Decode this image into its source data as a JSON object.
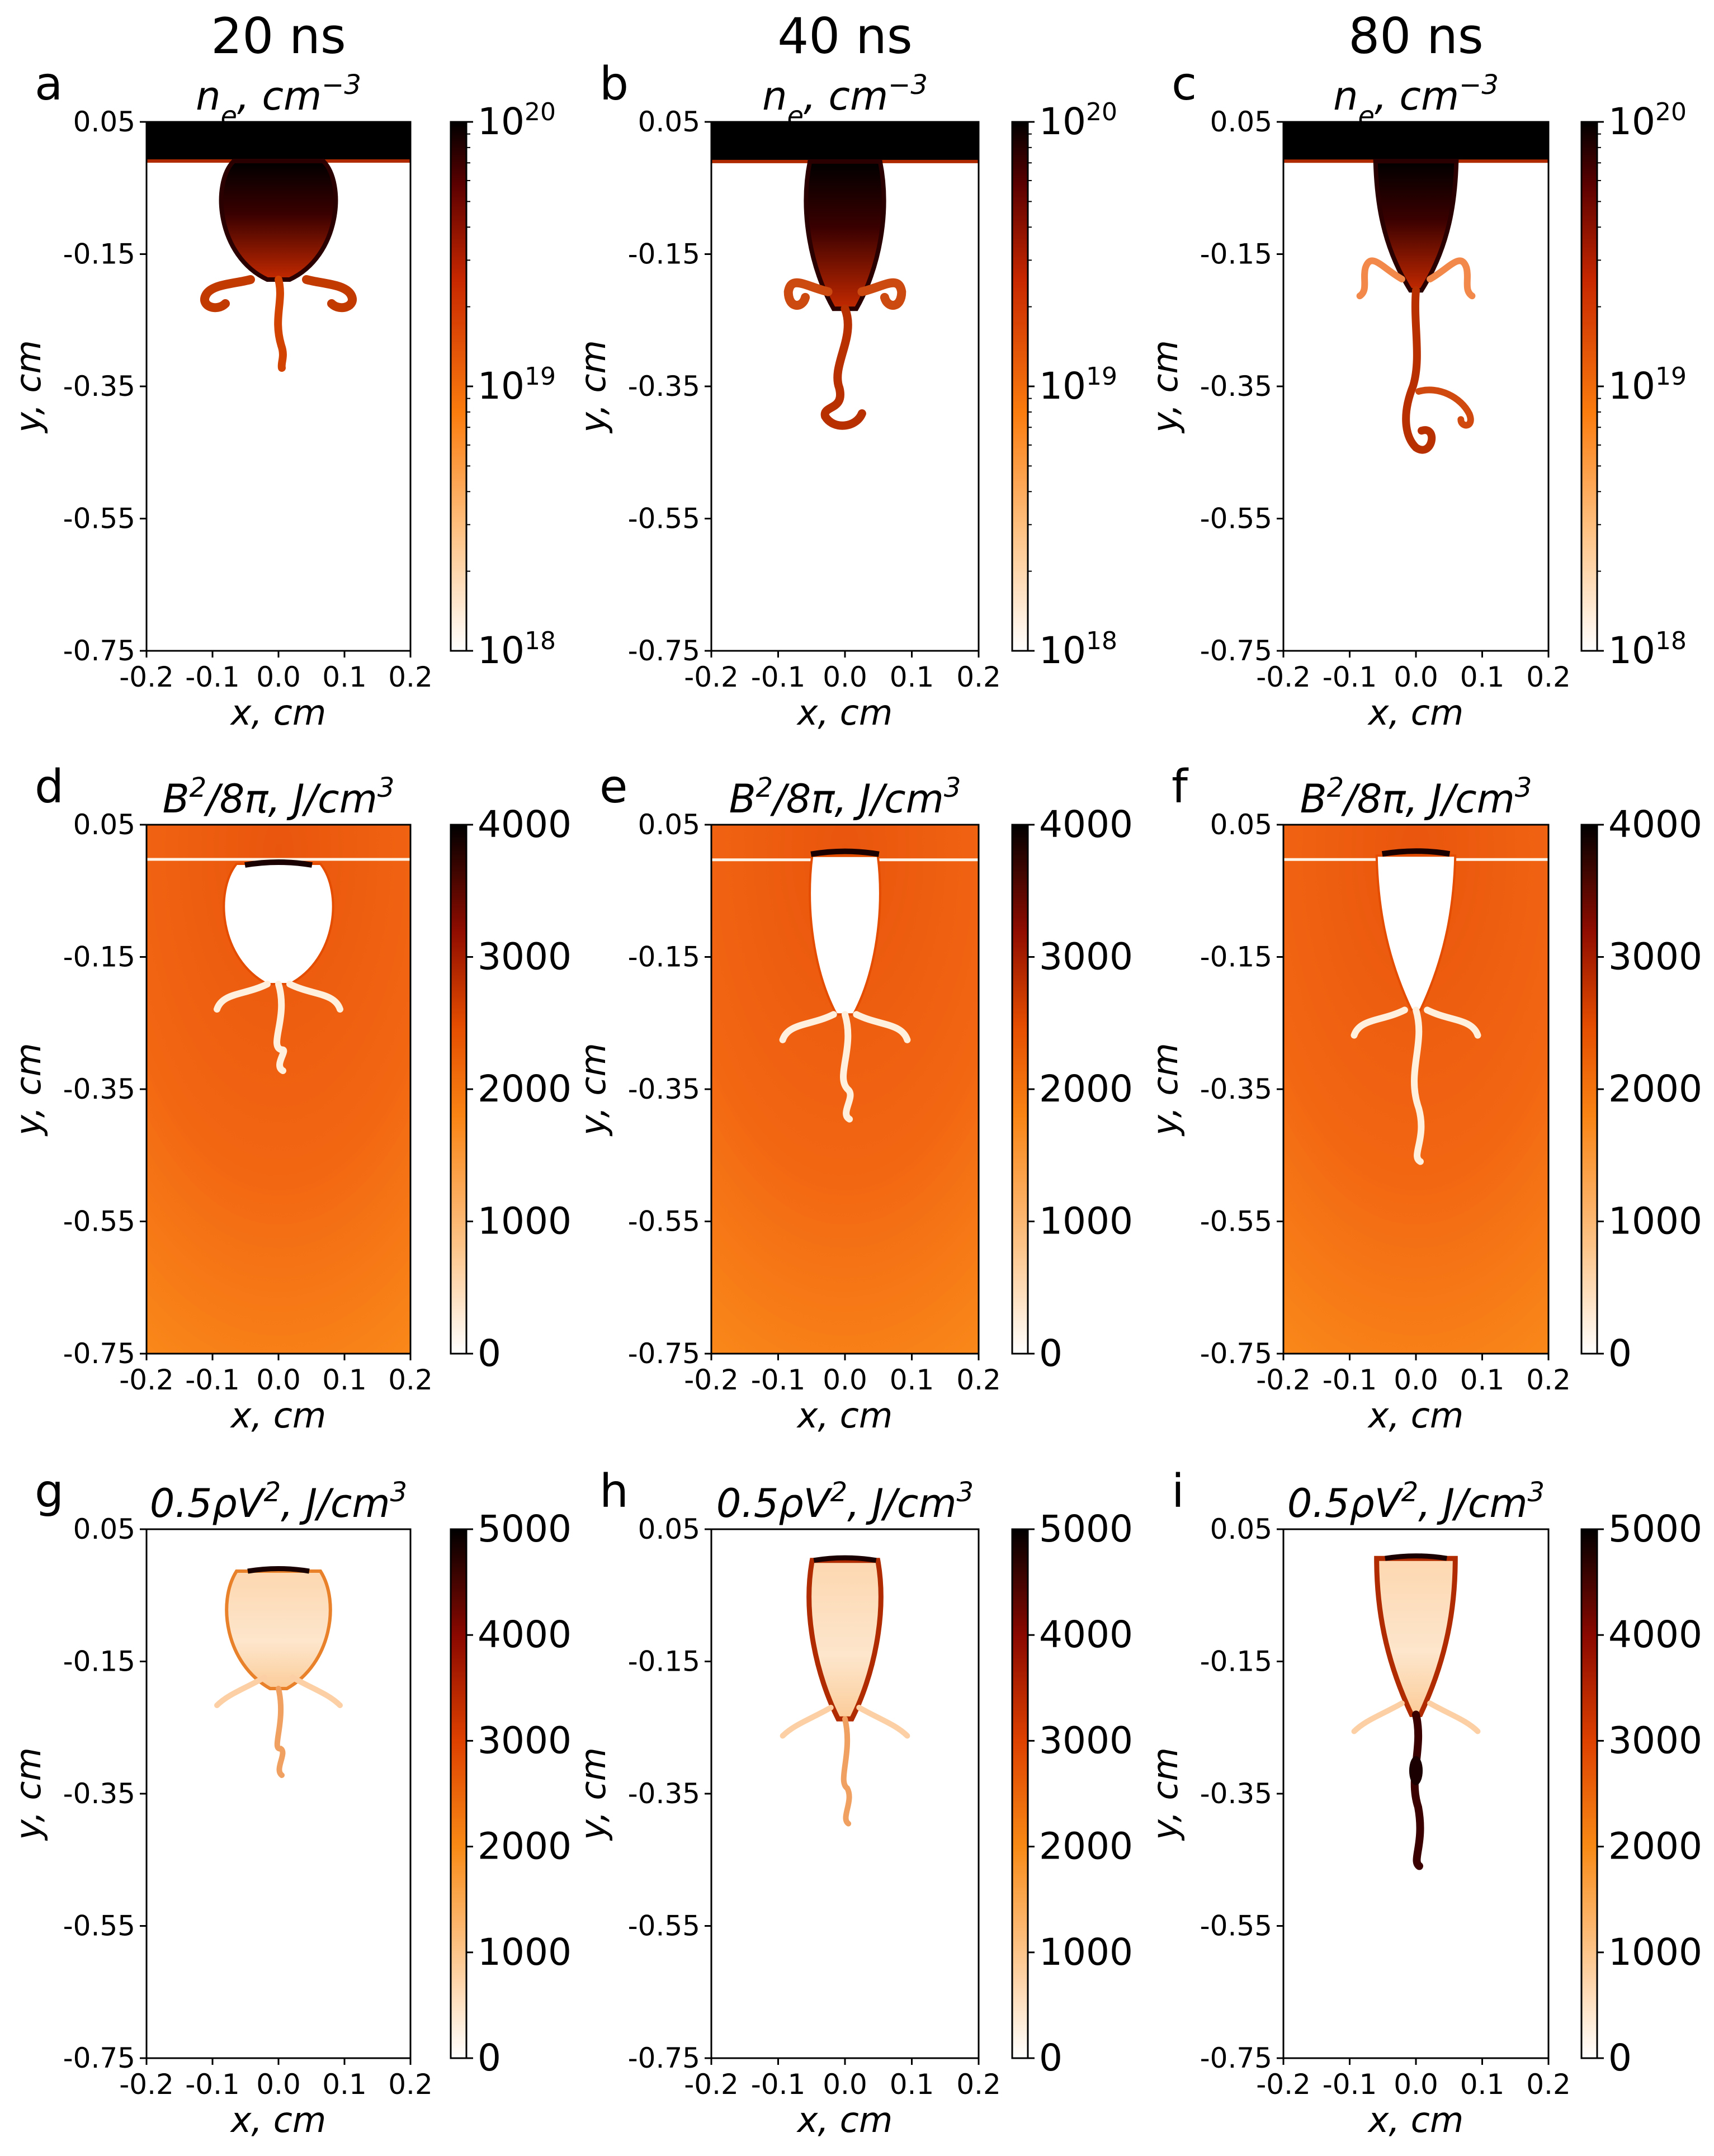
{
  "figure": {
    "column_titles": [
      "20 ns",
      "40 ns",
      "80 ns"
    ]
  },
  "chart_data": [
    {
      "panel": "a",
      "type": "heatmap",
      "time": "20 ns",
      "quantity": "n_e",
      "title": "n_e, cm^-3",
      "title_parts": {
        "sym": "n",
        "sub": "e",
        "unit": ", cm",
        "exp": "−3"
      },
      "xlabel": "x, cm",
      "ylabel": "y, cm",
      "xlim": [
        -0.2,
        0.2
      ],
      "ylim": [
        -0.75,
        0.05
      ],
      "xticks": [
        "-0.2",
        "-0.1",
        "0.0",
        "0.1",
        "0.2"
      ],
      "yticks": [
        "0.05",
        "-0.15",
        "-0.35",
        "-0.55",
        "-0.75"
      ],
      "colorbar": {
        "scale": "log",
        "min": 1e+18,
        "max": 1e+20,
        "ticks": [
          {
            "base": "10",
            "exp": "20"
          },
          {
            "base": "10",
            "exp": "19"
          },
          {
            "base": "10",
            "exp": "18"
          }
        ]
      },
      "features": {
        "bulb_depth_cm": 0.17,
        "lobes_y_cm": -0.21,
        "stem_tip_y_cm": -0.32
      }
    },
    {
      "panel": "b",
      "type": "heatmap",
      "time": "40 ns",
      "quantity": "n_e",
      "title": "n_e, cm^-3",
      "title_parts": {
        "sym": "n",
        "sub": "e",
        "unit": ", cm",
        "exp": "−3"
      },
      "xlabel": "x, cm",
      "ylabel": "y, cm",
      "xlim": [
        -0.2,
        0.2
      ],
      "ylim": [
        -0.75,
        0.05
      ],
      "xticks": [
        "-0.2",
        "-0.1",
        "0.0",
        "0.1",
        "0.2"
      ],
      "yticks": [
        "0.05",
        "-0.15",
        "-0.35",
        "-0.55",
        "-0.75"
      ],
      "colorbar": {
        "scale": "log",
        "min": 1e+18,
        "max": 1e+20,
        "ticks": [
          {
            "base": "10",
            "exp": "20"
          },
          {
            "base": "10",
            "exp": "19"
          },
          {
            "base": "10",
            "exp": "18"
          }
        ]
      },
      "features": {
        "bulb_depth_cm": 0.24,
        "lobes_y_cm": -0.19,
        "stem_tip_y_cm": -0.39
      }
    },
    {
      "panel": "c",
      "type": "heatmap",
      "time": "80 ns",
      "quantity": "n_e",
      "title": "n_e, cm^-3",
      "title_parts": {
        "sym": "n",
        "sub": "e",
        "unit": ", cm",
        "exp": "−3"
      },
      "xlabel": "x, cm",
      "ylabel": "y, cm",
      "xlim": [
        -0.2,
        0.2
      ],
      "ylim": [
        -0.75,
        0.05
      ],
      "xticks": [
        "-0.2",
        "-0.1",
        "0.0",
        "0.1",
        "0.2"
      ],
      "yticks": [
        "0.05",
        "-0.15",
        "-0.35",
        "-0.55",
        "-0.75"
      ],
      "colorbar": {
        "scale": "log",
        "min": 1e+18,
        "max": 1e+20,
        "ticks": [
          {
            "base": "10",
            "exp": "20"
          },
          {
            "base": "10",
            "exp": "19"
          },
          {
            "base": "10",
            "exp": "18"
          }
        ]
      },
      "features": {
        "bulb_depth_cm": 0.21,
        "lobes_y_cm": -0.17,
        "stem_tip_y_cm": -0.44
      }
    },
    {
      "panel": "d",
      "type": "heatmap",
      "time": "20 ns",
      "quantity": "B^2/8pi",
      "title": "B^2/8π, J/cm^3",
      "title_parts": {
        "sym": "B",
        "sup1": "2",
        "rest": "/8π, J/cm",
        "exp": "3"
      },
      "xlabel": "x, cm",
      "ylabel": "y, cm",
      "xlim": [
        -0.2,
        0.2
      ],
      "ylim": [
        -0.75,
        0.05
      ],
      "xticks": [
        "-0.2",
        "-0.1",
        "0.0",
        "0.1",
        "0.2"
      ],
      "yticks": [
        "0.05",
        "-0.15",
        "-0.35",
        "-0.55",
        "-0.75"
      ],
      "colorbar": {
        "scale": "linear",
        "min": 0,
        "max": 4000,
        "ticks": [
          "4000",
          "3000",
          "2000",
          "1000",
          "0"
        ]
      }
    },
    {
      "panel": "e",
      "type": "heatmap",
      "time": "40 ns",
      "quantity": "B^2/8pi",
      "title": "B^2/8π, J/cm^3",
      "title_parts": {
        "sym": "B",
        "sup1": "2",
        "rest": "/8π, J/cm",
        "exp": "3"
      },
      "xlabel": "x, cm",
      "ylabel": "y, cm",
      "xlim": [
        -0.2,
        0.2
      ],
      "ylim": [
        -0.75,
        0.05
      ],
      "xticks": [
        "-0.2",
        "-0.1",
        "0.0",
        "0.1",
        "0.2"
      ],
      "yticks": [
        "0.05",
        "-0.15",
        "-0.35",
        "-0.55",
        "-0.75"
      ],
      "colorbar": {
        "scale": "linear",
        "min": 0,
        "max": 4000,
        "ticks": [
          "4000",
          "3000",
          "2000",
          "1000",
          "0"
        ]
      }
    },
    {
      "panel": "f",
      "type": "heatmap",
      "time": "80 ns",
      "quantity": "B^2/8pi",
      "title": "B^2/8π, J/cm^3",
      "title_parts": {
        "sym": "B",
        "sup1": "2",
        "rest": "/8π, J/cm",
        "exp": "3"
      },
      "xlabel": "x, cm",
      "ylabel": "y, cm",
      "xlim": [
        -0.2,
        0.2
      ],
      "ylim": [
        -0.75,
        0.05
      ],
      "xticks": [
        "-0.2",
        "-0.1",
        "0.0",
        "0.1",
        "0.2"
      ],
      "yticks": [
        "0.05",
        "-0.15",
        "-0.35",
        "-0.55",
        "-0.75"
      ],
      "colorbar": {
        "scale": "linear",
        "min": 0,
        "max": 4000,
        "ticks": [
          "4000",
          "3000",
          "2000",
          "1000",
          "0"
        ]
      }
    },
    {
      "panel": "g",
      "type": "heatmap",
      "time": "20 ns",
      "quantity": "0.5 rho V^2",
      "title": "0.5ρV^2, J/cm^3",
      "title_parts": {
        "sym": "0.5ρV",
        "sup1": "2",
        "rest": ", J/cm",
        "exp": "3"
      },
      "xlabel": "x, cm",
      "ylabel": "y, cm",
      "xlim": [
        -0.2,
        0.2
      ],
      "ylim": [
        -0.75,
        0.05
      ],
      "xticks": [
        "-0.2",
        "-0.1",
        "0.0",
        "0.1",
        "0.2"
      ],
      "yticks": [
        "0.05",
        "-0.15",
        "-0.35",
        "-0.55",
        "-0.75"
      ],
      "colorbar": {
        "scale": "linear",
        "min": 0,
        "max": 5000,
        "ticks": [
          "5000",
          "4000",
          "3000",
          "2000",
          "1000",
          "0"
        ]
      }
    },
    {
      "panel": "h",
      "type": "heatmap",
      "time": "40 ns",
      "quantity": "0.5 rho V^2",
      "title": "0.5ρV^2, J/cm^3",
      "title_parts": {
        "sym": "0.5ρV",
        "sup1": "2",
        "rest": ", J/cm",
        "exp": "3"
      },
      "xlabel": "x, cm",
      "ylabel": "y, cm",
      "xlim": [
        -0.2,
        0.2
      ],
      "ylim": [
        -0.75,
        0.05
      ],
      "xticks": [
        "-0.2",
        "-0.1",
        "0.0",
        "0.1",
        "0.2"
      ],
      "yticks": [
        "0.05",
        "-0.15",
        "-0.35",
        "-0.55",
        "-0.75"
      ],
      "colorbar": {
        "scale": "linear",
        "min": 0,
        "max": 5000,
        "ticks": [
          "5000",
          "4000",
          "3000",
          "2000",
          "1000",
          "0"
        ]
      }
    },
    {
      "panel": "i",
      "type": "heatmap",
      "time": "80 ns",
      "quantity": "0.5 rho V^2",
      "title": "0.5ρV^2, J/cm^3",
      "title_parts": {
        "sym": "0.5ρV",
        "sup1": "2",
        "rest": ", J/cm",
        "exp": "3"
      },
      "xlabel": "x, cm",
      "ylabel": "y, cm",
      "xlim": [
        -0.2,
        0.2
      ],
      "ylim": [
        -0.75,
        0.05
      ],
      "xticks": [
        "-0.2",
        "-0.1",
        "0.0",
        "0.1",
        "0.2"
      ],
      "yticks": [
        "0.05",
        "-0.15",
        "-0.35",
        "-0.55",
        "-0.75"
      ],
      "colorbar": {
        "scale": "linear",
        "min": 0,
        "max": 5000,
        "ticks": [
          "5000",
          "4000",
          "3000",
          "2000",
          "1000",
          "0"
        ]
      }
    }
  ]
}
